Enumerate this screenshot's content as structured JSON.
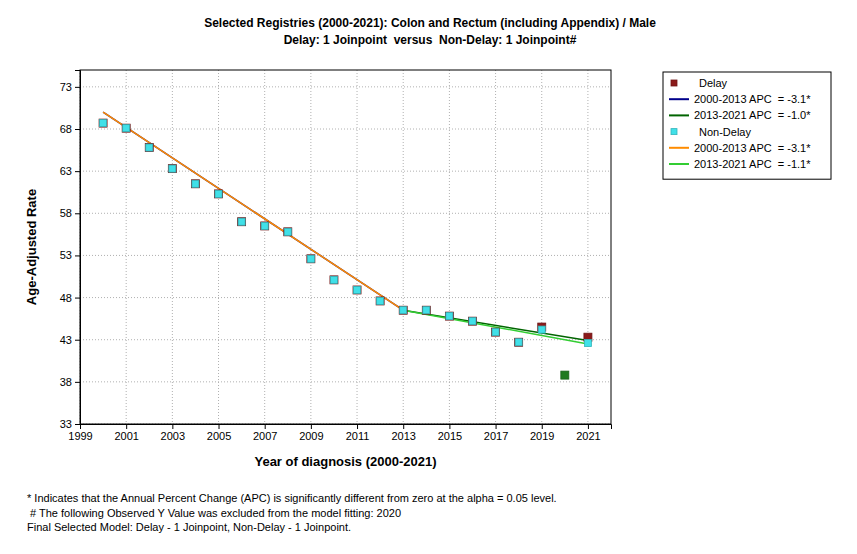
{
  "chart_data": {
    "type": "scatter",
    "title": "Selected Registries (2000-2021): Colon and Rectum (including Appendix) / Male",
    "subtitle": "Delay: 1 Joinpoint  versus  Non-Delay: 1 Joinpoint#",
    "x_label": "Year of diagnosis (2000-2021)",
    "y_label": "Age-Adjusted Rate",
    "x": [
      2000,
      2001,
      2002,
      2003,
      2004,
      2005,
      2006,
      2007,
      2008,
      2009,
      2010,
      2011,
      2012,
      2013,
      2014,
      2015,
      2016,
      2017,
      2018,
      2019,
      2020,
      2021
    ],
    "xlim": [
      1999,
      2022
    ],
    "xticks": [
      1999,
      2001,
      2003,
      2005,
      2007,
      2009,
      2011,
      2013,
      2015,
      2017,
      2019,
      2021
    ],
    "ylim": [
      33,
      75
    ],
    "yticks": [
      33,
      38,
      43,
      48,
      53,
      58,
      63,
      68,
      73
    ],
    "grid": true,
    "legend": "right",
    "series": [
      {
        "name": "Delay",
        "type": "scatter",
        "marker": "square",
        "color": "#8b1a1a",
        "colors": [
          "#8b1a1a",
          "#8b1a1a",
          "#8b1a1a",
          "#8b1a1a",
          "#8b1a1a",
          "#8b1a1a",
          "#8b1a1a",
          "#8b1a1a",
          "#8b1a1a",
          "#8b1a1a",
          "#8b1a1a",
          "#8b1a1a",
          "#8b1a1a",
          "#8b1a1a",
          "#8b1a1a",
          "#8b1a1a",
          "#8b1a1a",
          "#8b1a1a",
          "#8b1a1a",
          "#8b1a1a",
          "#1f7a1f",
          "#8b1a1a"
        ],
        "values": [
          68.7,
          68.1,
          65.8,
          63.3,
          61.5,
          60.3,
          57.0,
          56.5,
          55.8,
          52.6,
          50.1,
          48.9,
          47.6,
          46.5,
          46.5,
          45.8,
          45.2,
          43.9,
          42.7,
          44.5,
          38.8,
          43.3
        ]
      },
      {
        "name": "2000-2013 APC  = -3.1*",
        "type": "line",
        "line_style": "solid",
        "color": "#00008b",
        "x": [
          2000,
          2013
        ],
        "values": [
          70.0,
          46.5
        ]
      },
      {
        "name": "2013-2021 APC  = -1.0*",
        "type": "line",
        "line_style": "solid",
        "color": "#006400",
        "x": [
          2013,
          2021
        ],
        "values": [
          46.5,
          42.9
        ]
      },
      {
        "name": "Non-Delay",
        "type": "scatter",
        "marker": "square",
        "color": "#40e0e8",
        "values": [
          68.7,
          68.1,
          65.8,
          63.3,
          61.5,
          60.3,
          57.0,
          56.5,
          55.8,
          52.6,
          50.1,
          48.9,
          47.6,
          46.5,
          46.5,
          45.8,
          45.2,
          43.9,
          42.7,
          44.2,
          null,
          42.6
        ]
      },
      {
        "name": "2000-2013 APC  = -3.1*",
        "type": "line",
        "line_style": "solid",
        "color": "#ff8c00",
        "x": [
          2000,
          2013
        ],
        "values": [
          70.0,
          46.5
        ]
      },
      {
        "name": "2013-2021 APC  = -1.1*",
        "type": "line",
        "line_style": "solid",
        "color": "#32cd32",
        "x": [
          2013,
          2021
        ],
        "values": [
          46.5,
          42.5
        ]
      }
    ],
    "notes": [
      "* Indicates that the Annual Percent Change (APC) is significantly different from zero at the alpha = 0.05 level.",
      " # The following Observed Y Value was excluded from the model fitting: 2020",
      "Final Selected Model: Delay - 1 Joinpoint, Non-Delay - 1 Joinpoint."
    ]
  }
}
